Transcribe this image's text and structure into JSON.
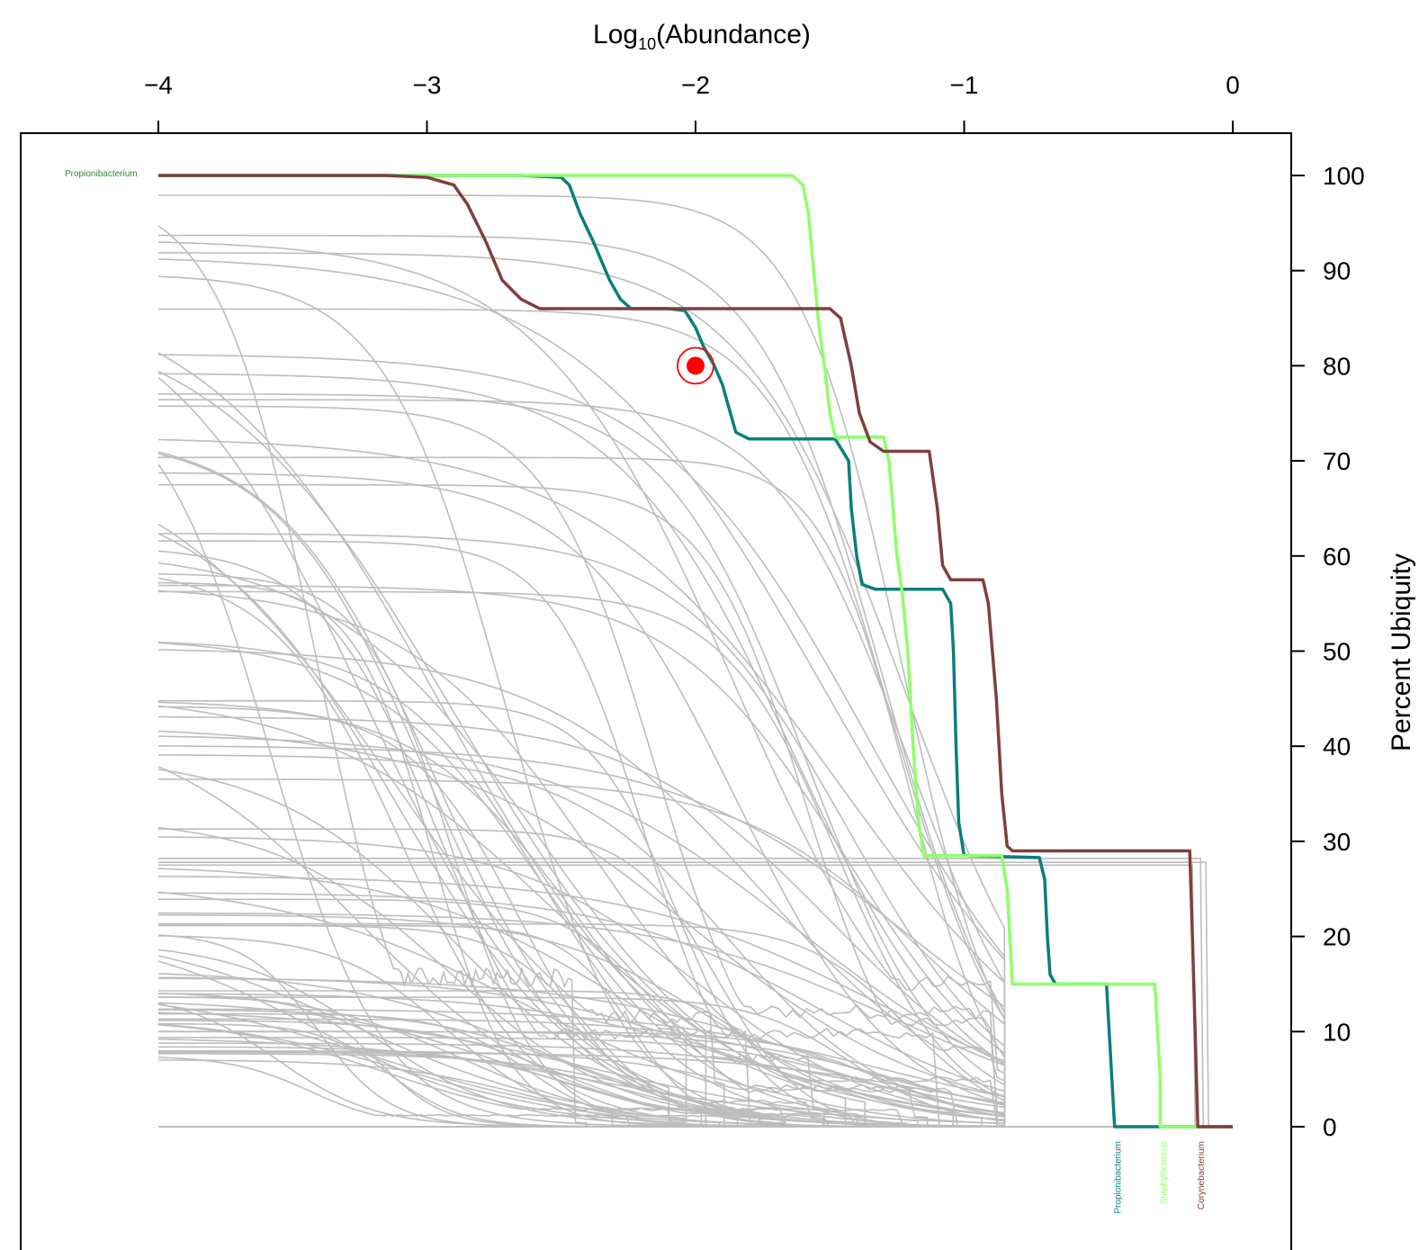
{
  "chart_data": {
    "type": "line",
    "title": "",
    "xlabel_main": "Log",
    "xlabel_sub": "10",
    "xlabel_rest": "(Abundance)",
    "ylabel": "Percent Ubiquity",
    "xlim": [
      -4,
      0
    ],
    "ylim": [
      0,
      100
    ],
    "x_ticks": [
      -4,
      -3,
      -2,
      -1,
      0
    ],
    "x_tick_labels": [
      "−4",
      "−3",
      "−2",
      "−1",
      "0"
    ],
    "y_ticks": [
      0,
      10,
      20,
      30,
      40,
      50,
      60,
      70,
      80,
      90,
      100
    ],
    "y_tick_labels": [
      "0",
      "10",
      "20",
      "30",
      "40",
      "50",
      "60",
      "70",
      "80",
      "90",
      "100"
    ],
    "marker": {
      "x": -2.0,
      "y": 80,
      "color": "#ff0000"
    },
    "top_left_label": "Propionibacterium",
    "background_series_color": "#bdbdbd",
    "background_series_count": 100,
    "highlighted_series": [
      {
        "name": "Propionibacterium",
        "color": "#0a7f7b",
        "points": [
          [
            -4,
            100
          ],
          [
            -2.65,
            100
          ],
          [
            -2.5,
            99.8
          ],
          [
            -2.47,
            99
          ],
          [
            -2.43,
            96
          ],
          [
            -2.38,
            93
          ],
          [
            -2.35,
            91
          ],
          [
            -2.32,
            89
          ],
          [
            -2.28,
            87
          ],
          [
            -2.24,
            86
          ],
          [
            -2.1,
            86
          ],
          [
            -2.04,
            85.8
          ],
          [
            -2.0,
            84
          ],
          [
            -1.97,
            82
          ],
          [
            -1.93,
            80
          ],
          [
            -1.9,
            78
          ],
          [
            -1.88,
            76
          ],
          [
            -1.85,
            73
          ],
          [
            -1.8,
            72.3
          ],
          [
            -1.48,
            72.3
          ],
          [
            -1.43,
            70
          ],
          [
            -1.42,
            65
          ],
          [
            -1.4,
            60
          ],
          [
            -1.38,
            57
          ],
          [
            -1.33,
            56.5
          ],
          [
            -1.08,
            56.5
          ],
          [
            -1.05,
            55
          ],
          [
            -1.04,
            50
          ],
          [
            -1.03,
            40
          ],
          [
            -1.02,
            32
          ],
          [
            -1.0,
            28.5
          ],
          [
            -0.72,
            28.3
          ],
          [
            -0.7,
            26
          ],
          [
            -0.69,
            20
          ],
          [
            -0.68,
            16
          ],
          [
            -0.66,
            15
          ],
          [
            -0.47,
            15
          ],
          [
            -0.46,
            10
          ],
          [
            -0.45,
            5
          ],
          [
            -0.44,
            0
          ],
          [
            0,
            0
          ]
        ]
      },
      {
        "name": "Staphylococcus",
        "color": "#8fff6a",
        "points": [
          [
            -4,
            100
          ],
          [
            -1.64,
            100
          ],
          [
            -1.6,
            99
          ],
          [
            -1.58,
            96
          ],
          [
            -1.56,
            90
          ],
          [
            -1.54,
            84
          ],
          [
            -1.52,
            80
          ],
          [
            -1.5,
            75
          ],
          [
            -1.48,
            72.5
          ],
          [
            -1.3,
            72.5
          ],
          [
            -1.28,
            70
          ],
          [
            -1.25,
            60
          ],
          [
            -1.23,
            56
          ],
          [
            -1.21,
            50
          ],
          [
            -1.19,
            40
          ],
          [
            -1.17,
            32
          ],
          [
            -1.15,
            28.5
          ],
          [
            -0.86,
            28.5
          ],
          [
            -0.84,
            25
          ],
          [
            -0.83,
            20
          ],
          [
            -0.82,
            15
          ],
          [
            -0.29,
            15
          ],
          [
            -0.28,
            10
          ],
          [
            -0.27,
            5
          ],
          [
            -0.27,
            0
          ],
          [
            0,
            0
          ]
        ]
      },
      {
        "name": "Corynebacterium",
        "color": "#7f3f3f",
        "points": [
          [
            -4,
            100
          ],
          [
            -3.15,
            100
          ],
          [
            -3.0,
            99.8
          ],
          [
            -2.9,
            99
          ],
          [
            -2.85,
            97
          ],
          [
            -2.78,
            93
          ],
          [
            -2.72,
            89
          ],
          [
            -2.65,
            87
          ],
          [
            -2.58,
            86
          ],
          [
            -1.5,
            86
          ],
          [
            -1.46,
            85
          ],
          [
            -1.42,
            80
          ],
          [
            -1.39,
            75
          ],
          [
            -1.35,
            72
          ],
          [
            -1.3,
            71
          ],
          [
            -1.13,
            71
          ],
          [
            -1.1,
            65
          ],
          [
            -1.08,
            59
          ],
          [
            -1.05,
            57.5
          ],
          [
            -0.93,
            57.5
          ],
          [
            -0.91,
            55
          ],
          [
            -0.88,
            45
          ],
          [
            -0.86,
            35
          ],
          [
            -0.84,
            29.5
          ],
          [
            -0.82,
            29
          ],
          [
            -0.16,
            29
          ],
          [
            -0.15,
            20
          ],
          [
            -0.14,
            10
          ],
          [
            -0.13,
            0
          ],
          [
            0,
            0
          ]
        ]
      }
    ],
    "bottom_labels": [
      {
        "text": "Propionibacterium",
        "x": -0.43,
        "color": "#0a7f7b"
      },
      {
        "text": "Staphylococcus",
        "x": -0.26,
        "color": "#8fff6a"
      },
      {
        "text": "Corynebacterium",
        "x": -0.12,
        "color": "#7f3f3f"
      }
    ]
  }
}
